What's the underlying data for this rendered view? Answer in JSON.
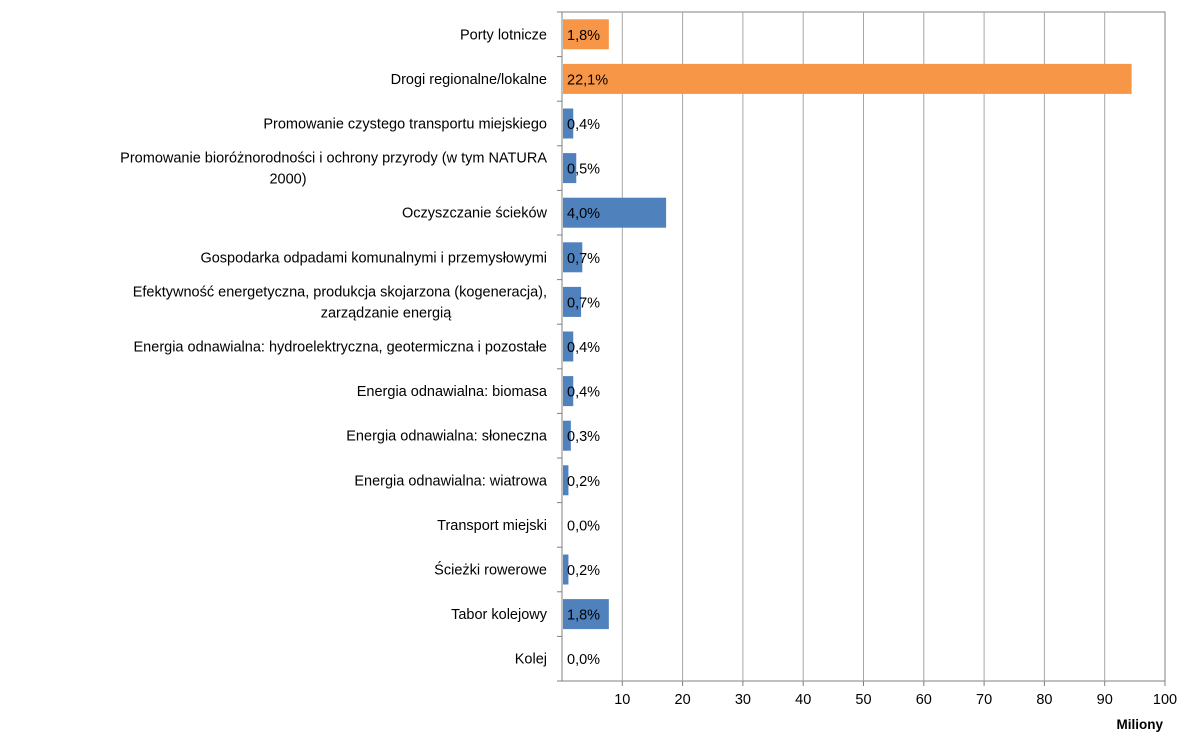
{
  "colors": {
    "highlight": "#F79646",
    "default": "#4F81BD",
    "grid": "#A6A6A6",
    "axis": "#808080",
    "text": "#000000"
  },
  "chart_data": {
    "type": "bar",
    "orientation": "horizontal",
    "title": "",
    "xlabel": "Miliony",
    "ylabel": "",
    "xlim": [
      0,
      100
    ],
    "x_ticks": [
      10,
      20,
      30,
      40,
      50,
      60,
      70,
      80,
      90,
      100
    ],
    "grid": true,
    "legend": "none",
    "categories": [
      "Porty lotnicze",
      "Drogi regionalne/lokalne",
      "Promowanie czystego transportu miejskiego",
      "Promowanie bioróżnorodności i ochrony przyrody (w tym NATURA 2000)",
      "Oczyszczanie ścieków",
      "Gospodarka odpadami komunalnymi i przemysłowymi",
      "Efektywność energetyczna, produkcja skojarzona (kogeneracja), zarządzanie energią",
      "Energia odnawialna: hydroelektryczna, geotermiczna i pozostałe",
      "Energia odnawialna: biomasa",
      "Energia odnawialna: słoneczna",
      "Energia odnawialna: wiatrowa",
      "Transport miejski",
      "Ścieżki rowerowe",
      "Tabor kolejowy",
      "Kolej"
    ],
    "category_lines": [
      [
        "Porty lotnicze"
      ],
      [
        "Drogi regionalne/lokalne"
      ],
      [
        "Promowanie czystego transportu miejskiego"
      ],
      [
        "Promowanie bioróżnorodności i ochrony przyrody (w tym NATURA",
        "2000)"
      ],
      [
        "Oczyszczanie ścieków"
      ],
      [
        "Gospodarka odpadami komunalnymi i przemysłowymi"
      ],
      [
        "Efektywność energetyczna, produkcja skojarzona (kogeneracja),",
        "zarządzanie energią"
      ],
      [
        "Energia odnawialna: hydroelektryczna, geotermiczna i pozostałe"
      ],
      [
        "Energia odnawialna: biomasa"
      ],
      [
        "Energia odnawialna: słoneczna"
      ],
      [
        "Energia odnawialna: wiatrowa"
      ],
      [
        "Transport miejski"
      ],
      [
        "Ścieżki rowerowe"
      ],
      [
        "Tabor kolejowy"
      ],
      [
        "Kolej"
      ]
    ],
    "values": [
      7.6,
      94.3,
      1.7,
      2.2,
      17.1,
      3.2,
      3.0,
      1.7,
      1.7,
      1.3,
      0.9,
      0,
      0.9,
      7.6,
      0
    ],
    "data_labels": [
      "1,8%",
      "22,1%",
      "0,4%",
      "0,5%",
      "4,0%",
      "0,7%",
      "0,7%",
      "0,4%",
      "0,4%",
      "0,3%",
      "0,2%",
      "0,0%",
      "0,2%",
      "1,8%",
      "0,0%"
    ],
    "highlight": [
      true,
      true,
      false,
      false,
      false,
      false,
      false,
      false,
      false,
      false,
      false,
      false,
      false,
      false,
      false
    ]
  }
}
